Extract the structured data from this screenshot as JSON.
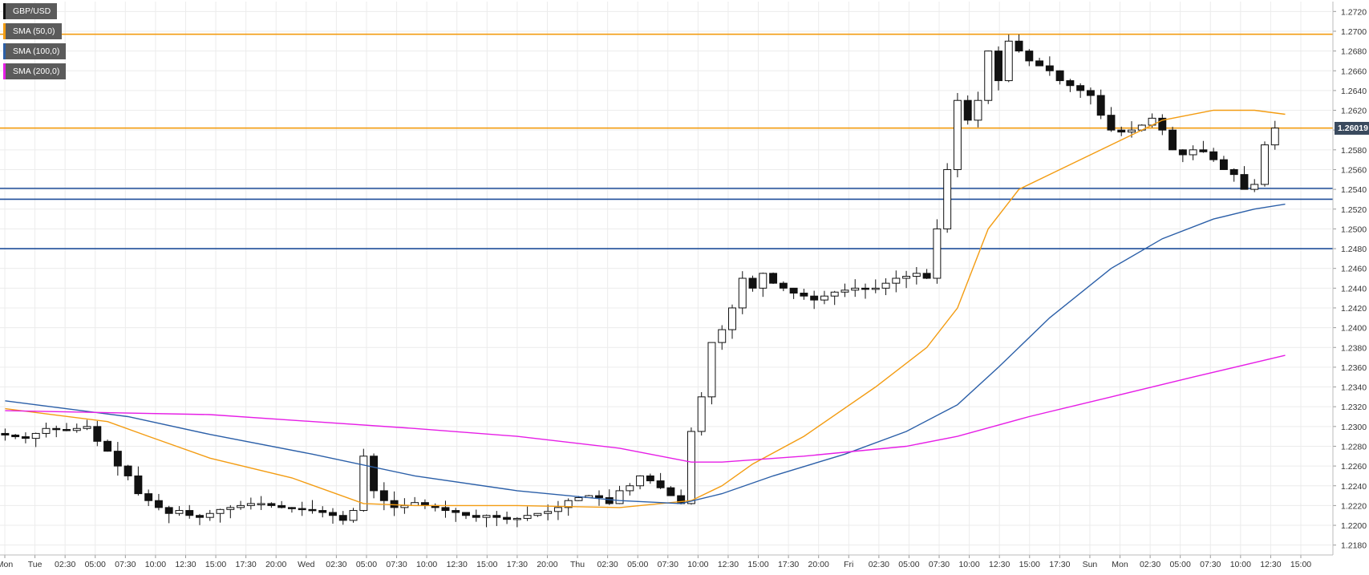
{
  "legend": [
    {
      "label": "GBP/USD",
      "color": "#111111"
    },
    {
      "label": "SMA (50,0)",
      "color": "#f39c12"
    },
    {
      "label": "SMA (100,0)",
      "color": "#2b5fa8"
    },
    {
      "label": "SMA (200,0)",
      "color": "#e61ee6"
    }
  ],
  "last_price_label": "1.26019",
  "chart_data": {
    "type": "candlestick",
    "symbol": "GBP/USD",
    "ylim": [
      1.217,
      1.273
    ],
    "y_ticks": [
      "1.2180",
      "1.2200",
      "1.2220",
      "1.2240",
      "1.2260",
      "1.2280",
      "1.2300",
      "1.2320",
      "1.2340",
      "1.2360",
      "1.2380",
      "1.2400",
      "1.2420",
      "1.2440",
      "1.2460",
      "1.2480",
      "1.2500",
      "1.2520",
      "1.2540",
      "1.2560",
      "1.2580",
      "1.2600",
      "1.2620",
      "1.2640",
      "1.2660",
      "1.2680",
      "1.2700",
      "1.2720"
    ],
    "x_ticks": [
      "Mon",
      "Tue",
      "02:30",
      "05:00",
      "07:30",
      "10:00",
      "12:30",
      "15:00",
      "17:30",
      "20:00",
      "Wed",
      "02:30",
      "05:00",
      "07:30",
      "10:00",
      "12:30",
      "15:00",
      "17:30",
      "20:00",
      "Thu",
      "02:30",
      "05:00",
      "07:30",
      "10:00",
      "12:30",
      "15:00",
      "17:30",
      "20:00",
      "Fri",
      "02:30",
      "05:00",
      "07:30",
      "10:00",
      "12:30",
      "15:00",
      "17:30",
      "Sun",
      "Mon",
      "02:30",
      "05:00",
      "07:30",
      "10:00",
      "12:30",
      "15:00"
    ],
    "horizontal_levels": [
      {
        "value": 1.2697,
        "color": "#f39c12"
      },
      {
        "value": 1.2602,
        "color": "#f39c12"
      },
      {
        "value": 1.2541,
        "color": "#1f4e9a"
      },
      {
        "value": 1.253,
        "color": "#1f4e9a"
      },
      {
        "value": 1.248,
        "color": "#1f4e9a"
      }
    ],
    "price_path": [
      [
        0,
        1.2293
      ],
      [
        3,
        1.2288
      ],
      [
        5,
        1.2298
      ],
      [
        7,
        1.2296
      ],
      [
        9,
        1.23
      ],
      [
        10,
        1.2285
      ],
      [
        11,
        1.2275
      ],
      [
        12,
        1.226
      ],
      [
        13,
        1.225
      ],
      [
        14,
        1.2232
      ],
      [
        15,
        1.2225
      ],
      [
        16,
        1.2218
      ],
      [
        17,
        1.2212
      ],
      [
        18,
        1.2215
      ],
      [
        19,
        1.221
      ],
      [
        20,
        1.2208
      ],
      [
        21,
        1.2212
      ],
      [
        22,
        1.2216
      ],
      [
        23,
        1.2218
      ],
      [
        24,
        1.222
      ],
      [
        25,
        1.2222
      ],
      [
        26,
        1.2222
      ],
      [
        27,
        1.222
      ],
      [
        28,
        1.2218
      ],
      [
        29,
        1.2217
      ],
      [
        30,
        1.2216
      ],
      [
        31,
        1.2215
      ],
      [
        32,
        1.2213
      ],
      [
        33,
        1.221
      ],
      [
        34,
        1.2205
      ],
      [
        35,
        1.2215
      ],
      [
        36,
        1.227
      ],
      [
        37,
        1.2235
      ],
      [
        38,
        1.2225
      ],
      [
        39,
        1.2218
      ],
      [
        40,
        1.222
      ],
      [
        41,
        1.2223
      ],
      [
        42,
        1.222
      ],
      [
        43,
        1.2218
      ],
      [
        44,
        1.2215
      ],
      [
        45,
        1.2213
      ],
      [
        46,
        1.221
      ],
      [
        47,
        1.2208
      ],
      [
        48,
        1.221
      ],
      [
        49,
        1.2208
      ],
      [
        50,
        1.2206
      ],
      [
        51,
        1.2207
      ],
      [
        52,
        1.221
      ],
      [
        53,
        1.2212
      ],
      [
        54,
        1.2214
      ],
      [
        55,
        1.2218
      ],
      [
        56,
        1.2225
      ],
      [
        57,
        1.2228
      ],
      [
        58,
        1.223
      ],
      [
        59,
        1.2228
      ],
      [
        60,
        1.2222
      ],
      [
        61,
        1.2235
      ],
      [
        62,
        1.224
      ],
      [
        63,
        1.225
      ],
      [
        64,
        1.2245
      ],
      [
        65,
        1.2238
      ],
      [
        66,
        1.223
      ],
      [
        67,
        1.2222
      ],
      [
        68,
        1.2295
      ],
      [
        69,
        1.233
      ],
      [
        70,
        1.2385
      ],
      [
        71,
        1.2398
      ],
      [
        72,
        1.242
      ],
      [
        73,
        1.245
      ],
      [
        74,
        1.244
      ],
      [
        75,
        1.2455
      ],
      [
        76,
        1.2445
      ],
      [
        77,
        1.244
      ],
      [
        78,
        1.2435
      ],
      [
        79,
        1.2432
      ],
      [
        80,
        1.2428
      ],
      [
        81,
        1.2432
      ],
      [
        82,
        1.2436
      ],
      [
        83,
        1.2438
      ],
      [
        84,
        1.244
      ],
      [
        85,
        1.2439
      ],
      [
        86,
        1.244
      ],
      [
        87,
        1.2445
      ],
      [
        88,
        1.245
      ],
      [
        89,
        1.2452
      ],
      [
        90,
        1.2455
      ],
      [
        91,
        1.245
      ],
      [
        92,
        1.25
      ],
      [
        93,
        1.256
      ],
      [
        94,
        1.263
      ],
      [
        95,
        1.261
      ],
      [
        96,
        1.263
      ],
      [
        97,
        1.268
      ],
      [
        98,
        1.265
      ],
      [
        99,
        1.269
      ],
      [
        100,
        1.268
      ],
      [
        101,
        1.267
      ],
      [
        102,
        1.2665
      ],
      [
        103,
        1.266
      ],
      [
        104,
        1.265
      ],
      [
        105,
        1.2645
      ],
      [
        106,
        1.264
      ],
      [
        107,
        1.2635
      ],
      [
        108,
        1.2615
      ],
      [
        109,
        1.26
      ],
      [
        110,
        1.2598
      ],
      [
        111,
        1.26
      ],
      [
        112,
        1.2605
      ],
      [
        113,
        1.2612
      ],
      [
        114,
        1.26
      ],
      [
        115,
        1.258
      ],
      [
        116,
        1.2575
      ],
      [
        117,
        1.258
      ],
      [
        118,
        1.2578
      ],
      [
        119,
        1.257
      ],
      [
        120,
        1.256
      ],
      [
        121,
        1.2555
      ],
      [
        122,
        1.254
      ],
      [
        123,
        1.2545
      ],
      [
        124,
        1.2585
      ],
      [
        125,
        1.2602
      ]
    ],
    "sma50": [
      [
        0,
        1.2318
      ],
      [
        10,
        1.2305
      ],
      [
        14,
        1.229
      ],
      [
        20,
        1.2268
      ],
      [
        28,
        1.2248
      ],
      [
        35,
        1.2222
      ],
      [
        40,
        1.222
      ],
      [
        50,
        1.222
      ],
      [
        60,
        1.2218
      ],
      [
        67,
        1.2225
      ],
      [
        70,
        1.224
      ],
      [
        73,
        1.2262
      ],
      [
        78,
        1.229
      ],
      [
        85,
        1.234
      ],
      [
        90,
        1.238
      ],
      [
        93,
        1.242
      ],
      [
        96,
        1.25
      ],
      [
        99,
        1.254
      ],
      [
        104,
        1.2565
      ],
      [
        109,
        1.259
      ],
      [
        113,
        1.261
      ],
      [
        118,
        1.262
      ],
      [
        122,
        1.262
      ],
      [
        125,
        1.2616
      ]
    ],
    "sma100": [
      [
        0,
        1.2326
      ],
      [
        12,
        1.231
      ],
      [
        20,
        1.2292
      ],
      [
        30,
        1.2272
      ],
      [
        40,
        1.225
      ],
      [
        50,
        1.2235
      ],
      [
        60,
        1.2225
      ],
      [
        66,
        1.2222
      ],
      [
        70,
        1.2232
      ],
      [
        75,
        1.225
      ],
      [
        82,
        1.2272
      ],
      [
        88,
        1.2295
      ],
      [
        93,
        1.2322
      ],
      [
        97,
        1.236
      ],
      [
        102,
        1.241
      ],
      [
        108,
        1.246
      ],
      [
        113,
        1.249
      ],
      [
        118,
        1.251
      ],
      [
        122,
        1.252
      ],
      [
        125,
        1.2525
      ]
    ],
    "sma200": [
      [
        0,
        1.2316
      ],
      [
        20,
        1.2312
      ],
      [
        40,
        1.2298
      ],
      [
        50,
        1.229
      ],
      [
        60,
        1.2278
      ],
      [
        67,
        1.2264
      ],
      [
        70,
        1.2264
      ],
      [
        78,
        1.227
      ],
      [
        88,
        1.228
      ],
      [
        93,
        1.229
      ],
      [
        100,
        1.231
      ],
      [
        108,
        1.233
      ],
      [
        116,
        1.235
      ],
      [
        125,
        1.2372
      ]
    ]
  }
}
